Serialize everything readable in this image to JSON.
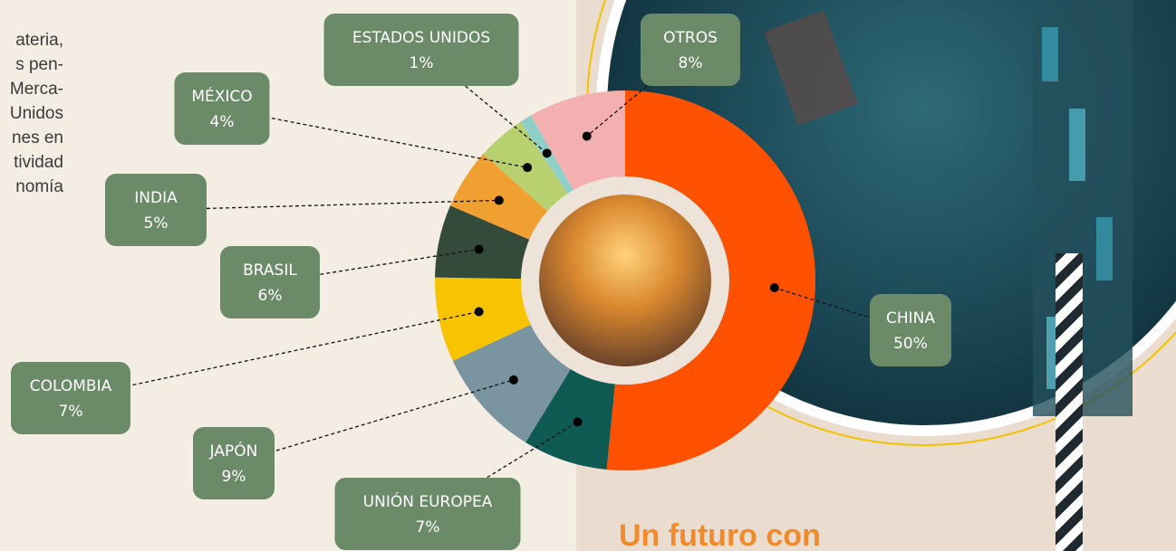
{
  "intro_lines": [
    "ateria,",
    "s pen-",
    "Merca-",
    "Unidos",
    "nes en",
    "tividad",
    "nomía"
  ],
  "heading": "Un futuro con",
  "chart_data": {
    "type": "pie",
    "categories": [
      "CHINA",
      "UNIÓN EUROPEA",
      "JAPÓN",
      "COLOMBIA",
      "BRASIL",
      "INDIA",
      "MÉXICO",
      "ESTADOS UNIDOS",
      "OTROS"
    ],
    "values": [
      50,
      7,
      9,
      7,
      6,
      5,
      4,
      1,
      8
    ],
    "value_labels": [
      "50%",
      "7%",
      "9%",
      "7%",
      "6%",
      "5%",
      "4%",
      "1%",
      "8%"
    ],
    "colors": [
      "#ff5100",
      "#0f5a52",
      "#7a95a0",
      "#f8c300",
      "#344a3a",
      "#f0a030",
      "#b8d070",
      "#8ecfc8",
      "#f4b0b0"
    ]
  }
}
